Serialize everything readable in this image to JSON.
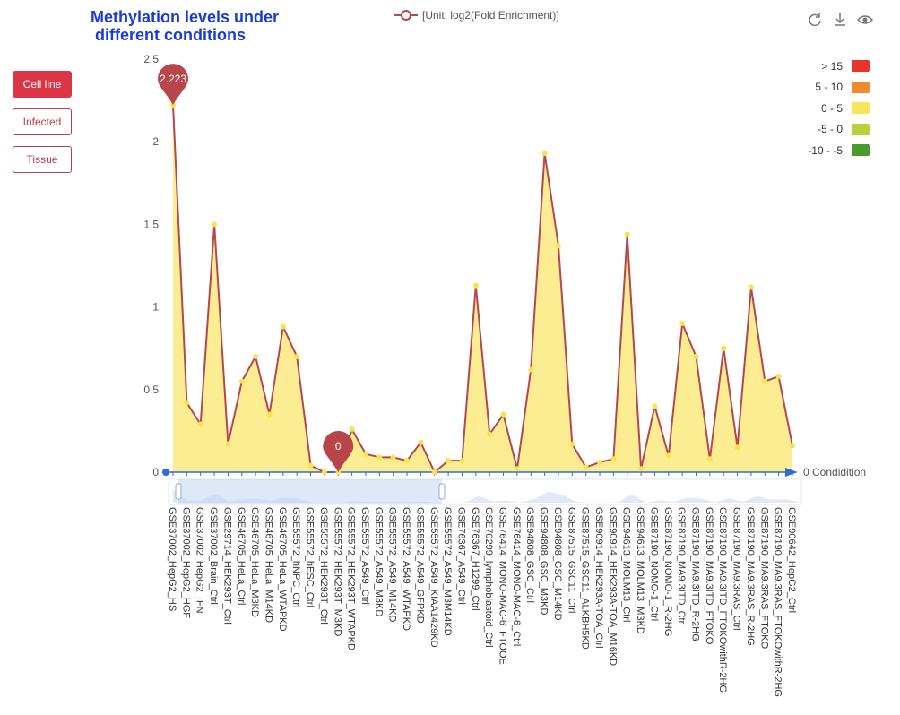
{
  "title_lines": [
    "Methylation levels under",
    " different conditions"
  ],
  "legend_label": "[Unit: log2(Fold Enrichment)]",
  "side_buttons": [
    {
      "label": "Cell line",
      "active": true
    },
    {
      "label": "Infected",
      "active": false
    },
    {
      "label": "Tissue",
      "active": false
    }
  ],
  "tools": [
    "refresh-icon",
    "download-icon",
    "eye-icon"
  ],
  "visual_map": [
    {
      "label": "> 15",
      "color": "#e8352a"
    },
    {
      "label": "5 - 10",
      "color": "#ef8a31"
    },
    {
      "label": "0 - 5",
      "color": "#f9e45a"
    },
    {
      "label": "-5 - 0",
      "color": "#b7d23f"
    },
    {
      "label": "-10 - -5",
      "color": "#4a9a2e"
    }
  ],
  "colors": {
    "line": "#b5474d",
    "area": "#fcec8c",
    "marker": "#b9444a",
    "axis": "#2f6bd3"
  },
  "chart_data": {
    "type": "area",
    "ylim": [
      0,
      2.5
    ],
    "yticks": [
      "0",
      "0.5",
      "1",
      "1.5",
      "2",
      "2.5"
    ],
    "x_axis_end_label": "0 Condidition",
    "markers": [
      {
        "index": 0,
        "label": "2.223"
      },
      {
        "index": 12,
        "label": "0"
      }
    ],
    "categories": [
      "GSE37002_HepG2_HS",
      "GSE37002_HepG2_HGF",
      "GSE37002_HepG2_IFN",
      "GSE37002_Brain_Ctrl",
      "GSE29714_HEK293T_Ctrl",
      "GSE46705_HeLa_Ctrl",
      "GSE46705_HeLa_M3KD",
      "GSE46705_HeLa_M14KD",
      "GSE46705_HeLa_WTAPKD",
      "GSE55572_hNPC_Ctrl",
      "GSE55572_hESC_Ctrl",
      "GSE55572_HEK293T_Ctrl",
      "GSE55572_HEK293T_M3KD",
      "GSE55572_HEK293T_WTAPKD",
      "GSE55572_A549_Ctrl",
      "GSE55572_A549_M3KD",
      "GSE55572_A549_M14KD",
      "GSE55572_A549_WTAPKD",
      "GSE55572_A549_GFPKD",
      "GSE55572_A549_KIAA1429KD",
      "GSE55572_A549_M3M14KD",
      "GSE76367_A549_Ctrl",
      "GSE76367_H1299_Ctrl",
      "GSE70299_lymphoblastoid_Ctrl",
      "GSE76414_MONO-MAC-6_FTOOE",
      "GSE76414_MONO-MAC-6_Ctrl",
      "GSE94808_GSC_Ctrl",
      "GSE94808_GSC_M3KD",
      "GSE94808_GSC_M14KD",
      "GSE87515_GSC11_Ctrl",
      "GSE87515_GSC11_ALKBH5KD",
      "GSE90914_HEK293A-TOA_Ctrl",
      "GSE90914_HEK293A-TOA_M16KD",
      "GSE94613_MOLM13_Ctrl",
      "GSE94613_MOLM13_M3KD",
      "GSE87190_NOMO-1_Ctrl",
      "GSE87190_NOMO-1_R-2HG",
      "GSE87190_MA9.3ITD_Ctrl",
      "GSE87190_MA9.3ITD_R-2HG",
      "GSE87190_MA9.3ITD_FTOKO",
      "GSE87190_MA9.3ITD_FTOKOwithR-2HG",
      "GSE87190_MA9.3RAS_Ctrl",
      "GSE87190_MA9.3RAS_R-2HG",
      "GSE87190_MA9.3RAS_FTOKO",
      "GSE87190_MA9.3RAS_FTOKOwithR-2HG",
      "GSE90642_HepG2_Ctrl"
    ],
    "values": [
      2.223,
      0.42,
      0.29,
      1.5,
      0.17,
      0.55,
      0.7,
      0.35,
      0.88,
      0.7,
      0.04,
      0.0,
      0.0,
      0.26,
      0.11,
      0.09,
      0.09,
      0.07,
      0.18,
      0.0,
      0.07,
      0.07,
      1.13,
      0.23,
      0.35,
      0.02,
      0.62,
      1.93,
      1.37,
      0.17,
      0.03,
      0.06,
      0.08,
      1.44,
      0.02,
      0.4,
      0.1,
      0.9,
      0.7,
      0.08,
      0.75,
      0.15,
      1.12,
      0.55,
      0.58,
      0.16
    ]
  }
}
